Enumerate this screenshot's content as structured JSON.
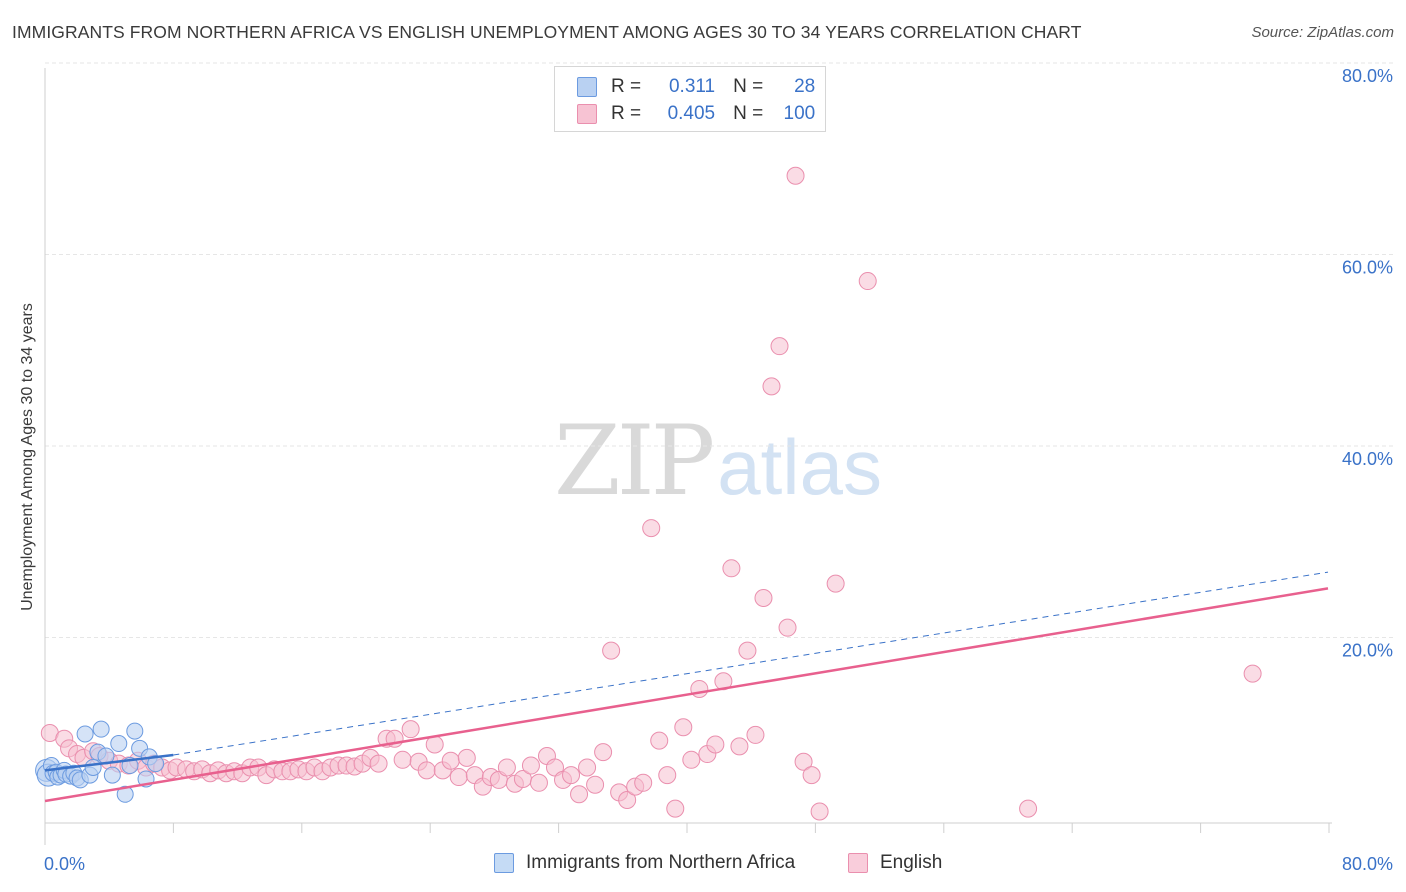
{
  "header": {
    "title": "IMMIGRANTS FROM NORTHERN AFRICA VS ENGLISH UNEMPLOYMENT AMONG AGES 30 TO 34 YEARS CORRELATION CHART",
    "source": "Source: ZipAtlas.com"
  },
  "watermark": {
    "zip": "ZIP",
    "atlas": "atlas"
  },
  "legend": {
    "r_label": "R =",
    "n_label": "N =",
    "rows": [
      {
        "r": "0.311",
        "n": "28",
        "fill": "#b9d1f2",
        "stroke": "#6c9be0"
      },
      {
        "r": "0.405",
        "n": "100",
        "fill": "#f7c3d3",
        "stroke": "#ea8fae"
      }
    ]
  },
  "bottom_legend": [
    {
      "label": "Immigrants from Northern Africa",
      "fill": "#c5dbf5",
      "stroke": "#6c9be0"
    },
    {
      "label": "English",
      "fill": "#f9cddb",
      "stroke": "#ea8fae"
    }
  ],
  "colors": {
    "blue": "#3a72c8",
    "blue_fill": "#b9d1f2",
    "pink": "#e8608e",
    "pink_fill": "#f6bfd0",
    "grid": "#e6e6e6",
    "tick_label": "#3a72c8"
  },
  "chart_data": {
    "type": "scatter",
    "title": "IMMIGRANTS FROM NORTHERN AFRICA VS ENGLISH UNEMPLOYMENT AMONG AGES 30 TO 34 YEARS CORRELATION CHART",
    "xlabel": "",
    "ylabel": "Unemployment Among Ages 30 to 34 years",
    "xlim": [
      0,
      80
    ],
    "ylim": [
      0,
      80
    ],
    "x_tick_labels": [
      "0.0%",
      "80.0%"
    ],
    "y_ticks": [
      20,
      40,
      60,
      80
    ],
    "y_tick_labels": [
      "20.0%",
      "40.0%",
      "60.0%",
      "80.0%"
    ],
    "grid": true,
    "legend_position": "top-center",
    "series": [
      {
        "name": "Immigrants from Northern Africa",
        "color": "#6c9be0",
        "r": 0.311,
        "n": 28,
        "trend_solid": [
          [
            0,
            5.5
          ],
          [
            8,
            7.1
          ]
        ],
        "trend_dashed": [
          [
            8,
            7.1
          ],
          [
            80,
            26.2
          ]
        ],
        "points": [
          [
            0.1,
            5.5
          ],
          [
            0.2,
            5.0
          ],
          [
            0.4,
            6.0
          ],
          [
            0.5,
            5.2
          ],
          [
            0.7,
            5.3
          ],
          [
            0.8,
            4.8
          ],
          [
            1.0,
            5.0
          ],
          [
            1.2,
            5.5
          ],
          [
            1.3,
            5.1
          ],
          [
            1.6,
            4.9
          ],
          [
            1.8,
            5.2
          ],
          [
            2.0,
            4.7
          ],
          [
            2.2,
            4.5
          ],
          [
            2.5,
            9.3
          ],
          [
            2.8,
            5.0
          ],
          [
            3.0,
            5.8
          ],
          [
            3.3,
            7.4
          ],
          [
            3.5,
            9.8
          ],
          [
            3.8,
            7.0
          ],
          [
            4.2,
            5.0
          ],
          [
            4.6,
            8.3
          ],
          [
            5.0,
            3.0
          ],
          [
            5.3,
            6.0
          ],
          [
            5.6,
            9.6
          ],
          [
            5.9,
            7.8
          ],
          [
            6.3,
            4.6
          ],
          [
            6.5,
            6.9
          ],
          [
            6.9,
            6.2
          ]
        ]
      },
      {
        "name": "English",
        "color": "#ea8fae",
        "r": 0.405,
        "n": 100,
        "trend": [
          [
            0,
            2.3
          ],
          [
            80,
            24.5
          ]
        ],
        "points": [
          [
            0.3,
            9.4
          ],
          [
            1.2,
            8.8
          ],
          [
            1.5,
            7.8
          ],
          [
            2.0,
            7.2
          ],
          [
            2.4,
            6.8
          ],
          [
            3.0,
            7.5
          ],
          [
            3.4,
            7.0
          ],
          [
            4.0,
            6.5
          ],
          [
            4.6,
            6.2
          ],
          [
            5.2,
            6.0
          ],
          [
            5.8,
            6.5
          ],
          [
            6.3,
            5.8
          ],
          [
            6.8,
            6.2
          ],
          [
            7.3,
            5.8
          ],
          [
            7.8,
            5.5
          ],
          [
            8.2,
            5.8
          ],
          [
            8.8,
            5.6
          ],
          [
            9.3,
            5.4
          ],
          [
            9.8,
            5.6
          ],
          [
            10.3,
            5.2
          ],
          [
            10.8,
            5.5
          ],
          [
            11.3,
            5.2
          ],
          [
            11.8,
            5.4
          ],
          [
            12.3,
            5.2
          ],
          [
            12.8,
            5.8
          ],
          [
            13.3,
            5.8
          ],
          [
            13.8,
            5.0
          ],
          [
            14.3,
            5.6
          ],
          [
            14.8,
            5.4
          ],
          [
            15.3,
            5.4
          ],
          [
            15.8,
            5.6
          ],
          [
            16.3,
            5.4
          ],
          [
            16.8,
            5.8
          ],
          [
            17.3,
            5.4
          ],
          [
            17.8,
            5.8
          ],
          [
            18.3,
            6.0
          ],
          [
            18.8,
            6.0
          ],
          [
            19.3,
            5.9
          ],
          [
            19.8,
            6.2
          ],
          [
            20.3,
            6.8
          ],
          [
            20.8,
            6.2
          ],
          [
            21.3,
            8.8
          ],
          [
            21.8,
            8.8
          ],
          [
            22.3,
            6.6
          ],
          [
            22.8,
            9.8
          ],
          [
            23.3,
            6.4
          ],
          [
            23.8,
            5.5
          ],
          [
            24.3,
            8.2
          ],
          [
            24.8,
            5.5
          ],
          [
            25.3,
            6.5
          ],
          [
            25.8,
            4.8
          ],
          [
            26.3,
            6.8
          ],
          [
            26.8,
            5.0
          ],
          [
            27.3,
            3.8
          ],
          [
            27.8,
            4.8
          ],
          [
            28.3,
            4.5
          ],
          [
            28.8,
            5.8
          ],
          [
            29.3,
            4.1
          ],
          [
            29.8,
            4.6
          ],
          [
            30.3,
            6.0
          ],
          [
            30.8,
            4.2
          ],
          [
            31.3,
            7.0
          ],
          [
            31.8,
            5.8
          ],
          [
            32.3,
            4.5
          ],
          [
            32.8,
            5.0
          ],
          [
            33.3,
            3.0
          ],
          [
            33.8,
            5.8
          ],
          [
            34.3,
            4.0
          ],
          [
            34.8,
            7.4
          ],
          [
            35.3,
            18.0
          ],
          [
            35.8,
            3.2
          ],
          [
            36.3,
            2.4
          ],
          [
            36.8,
            3.8
          ],
          [
            37.3,
            4.2
          ],
          [
            37.8,
            30.8
          ],
          [
            38.3,
            8.6
          ],
          [
            38.8,
            5.0
          ],
          [
            39.3,
            1.5
          ],
          [
            39.8,
            10.0
          ],
          [
            40.3,
            6.6
          ],
          [
            40.8,
            14.0
          ],
          [
            41.3,
            7.2
          ],
          [
            41.8,
            8.2
          ],
          [
            42.3,
            14.8
          ],
          [
            42.8,
            26.6
          ],
          [
            43.3,
            8.0
          ],
          [
            43.8,
            18.0
          ],
          [
            44.3,
            9.2
          ],
          [
            44.8,
            23.5
          ],
          [
            45.3,
            45.6
          ],
          [
            45.8,
            49.8
          ],
          [
            46.3,
            20.4
          ],
          [
            46.8,
            67.6
          ],
          [
            47.3,
            6.4
          ],
          [
            47.8,
            5.0
          ],
          [
            48.3,
            1.2
          ],
          [
            49.3,
            25.0
          ],
          [
            51.3,
            56.6
          ],
          [
            61.3,
            1.5
          ],
          [
            75.3,
            15.6
          ]
        ]
      }
    ]
  }
}
